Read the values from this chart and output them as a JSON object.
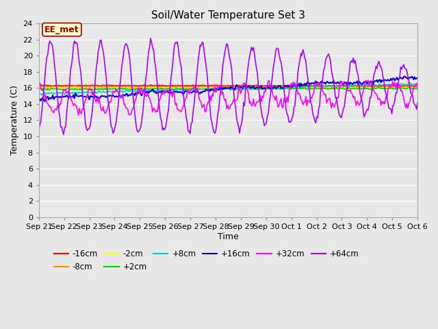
{
  "title": "Soil/Water Temperature Set 3",
  "xlabel": "Time",
  "ylabel": "Temperature (C)",
  "ylim": [
    0,
    24
  ],
  "yticks": [
    0,
    2,
    4,
    6,
    8,
    10,
    12,
    14,
    16,
    18,
    20,
    22,
    24
  ],
  "x_labels": [
    "Sep 21",
    "Sep 22",
    "Sep 23",
    "Sep 24",
    "Sep 25",
    "Sep 26",
    "Sep 27",
    "Sep 28",
    "Sep 29",
    "Sep 30",
    "Oct 1",
    "Oct 2",
    "Oct 3",
    "Oct 4",
    "Oct 5",
    "Oct 6"
  ],
  "annotation_text": "EE_met",
  "annotation_bg": "#ffffcc",
  "annotation_border": "#990000",
  "series": {
    "-16cm": {
      "color": "#ff0000",
      "lw": 1.2
    },
    "-8cm": {
      "color": "#ff8800",
      "lw": 1.2
    },
    "-2cm": {
      "color": "#ffff00",
      "lw": 1.2
    },
    "+2cm": {
      "color": "#00cc00",
      "lw": 1.2
    },
    "+8cm": {
      "color": "#00cccc",
      "lw": 1.2
    },
    "+16cm": {
      "color": "#0000cc",
      "lw": 1.5
    },
    "+32cm": {
      "color": "#ff00ff",
      "lw": 1.2
    },
    "+64cm": {
      "color": "#aa00ff",
      "lw": 1.2
    }
  },
  "bg_color": "#e8e8e8",
  "plot_bg": "#e8e8e8",
  "figsize": [
    6.4,
    4.8
  ],
  "dpi": 100
}
